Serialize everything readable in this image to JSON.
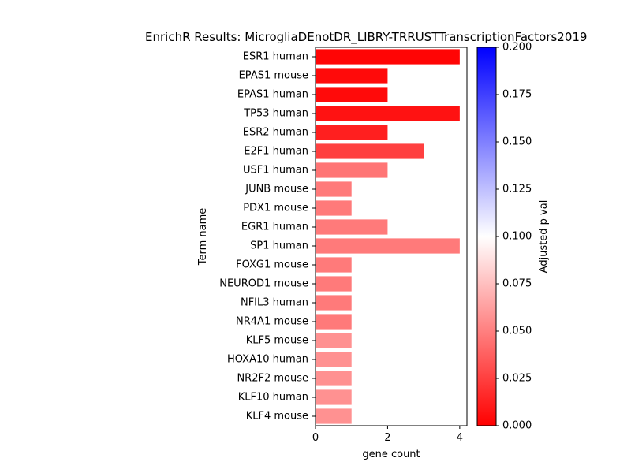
{
  "chart_data": {
    "type": "bar",
    "orientation": "horizontal",
    "title": "EnrichR Results: MicrogliaDEnotDR_LIBRY-TRRUSTTranscriptionFactors2019",
    "xlabel": "gene count",
    "ylabel": "Term name",
    "xlim": [
      0,
      4.2
    ],
    "xticks": [
      "0",
      "2",
      "4"
    ],
    "categories": [
      "ESR1 human",
      "EPAS1 mouse",
      "EPAS1 human",
      "TP53 human",
      "ESR2 human",
      "E2F1 human",
      "USF1 human",
      "JUNB mouse",
      "PDX1 mouse",
      "EGR1 human",
      "SP1 human",
      "FOXG1 mouse",
      "NEUROD1 mouse",
      "NFIL3 human",
      "NR4A1 mouse",
      "KLF5 mouse",
      "HOXA10 human",
      "NR2F2 mouse",
      "KLF10 human",
      "KLF4 mouse"
    ],
    "values": [
      4,
      2,
      2,
      4,
      2,
      3,
      2,
      1,
      1,
      2,
      4,
      1,
      1,
      1,
      1,
      1,
      1,
      1,
      1,
      1
    ],
    "adjusted_p": [
      0.002,
      0.004,
      0.004,
      0.007,
      0.012,
      0.025,
      0.046,
      0.048,
      0.048,
      0.048,
      0.048,
      0.048,
      0.048,
      0.048,
      0.048,
      0.057,
      0.057,
      0.057,
      0.057,
      0.057
    ],
    "colorbar": {
      "label": "Adjusted p val",
      "range": [
        0,
        0.2
      ],
      "ticks": [
        "0.000",
        "0.025",
        "0.050",
        "0.075",
        "0.100",
        "0.125",
        "0.150",
        "0.175",
        "0.200"
      ],
      "colors": [
        "#ff0000",
        "#ffffff",
        "#0000ff"
      ]
    }
  }
}
